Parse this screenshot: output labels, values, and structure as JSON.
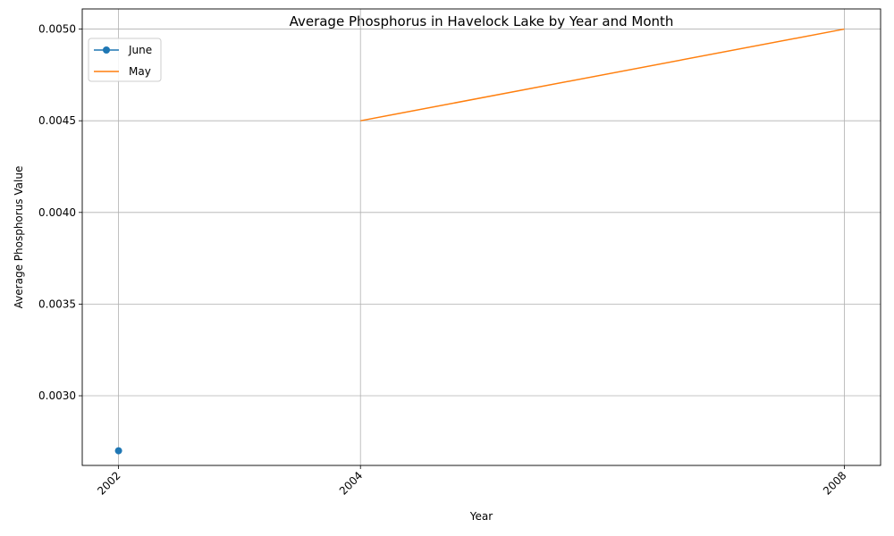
{
  "chart_data": {
    "type": "line",
    "title": "Average Phosphorus in Havelock Lake by Year and Month",
    "xlabel": "Year",
    "ylabel": "Average Phosphorus Value",
    "x_ticks": [
      "2002",
      "2004",
      "2008"
    ],
    "x_tick_values": [
      2002,
      2004,
      2008
    ],
    "xlim": [
      2001.7,
      2008.3
    ],
    "ylim": [
      0.00262,
      0.00511
    ],
    "y_ticks": [
      0.003,
      0.0035,
      0.004,
      0.0045,
      0.005
    ],
    "y_tick_labels": [
      "0.0030",
      "0.0035",
      "0.0040",
      "0.0045",
      "0.0050"
    ],
    "grid": true,
    "legend_position": "top-left",
    "series": [
      {
        "name": "June",
        "color": "#1f77b4",
        "marker": "circle",
        "points": [
          {
            "x": 2002,
            "y": 0.0027
          }
        ]
      },
      {
        "name": "May",
        "color": "#ff7f0e",
        "marker": "none",
        "points": [
          {
            "x": 2004,
            "y": 0.0045
          },
          {
            "x": 2008,
            "y": 0.005
          }
        ]
      }
    ]
  }
}
